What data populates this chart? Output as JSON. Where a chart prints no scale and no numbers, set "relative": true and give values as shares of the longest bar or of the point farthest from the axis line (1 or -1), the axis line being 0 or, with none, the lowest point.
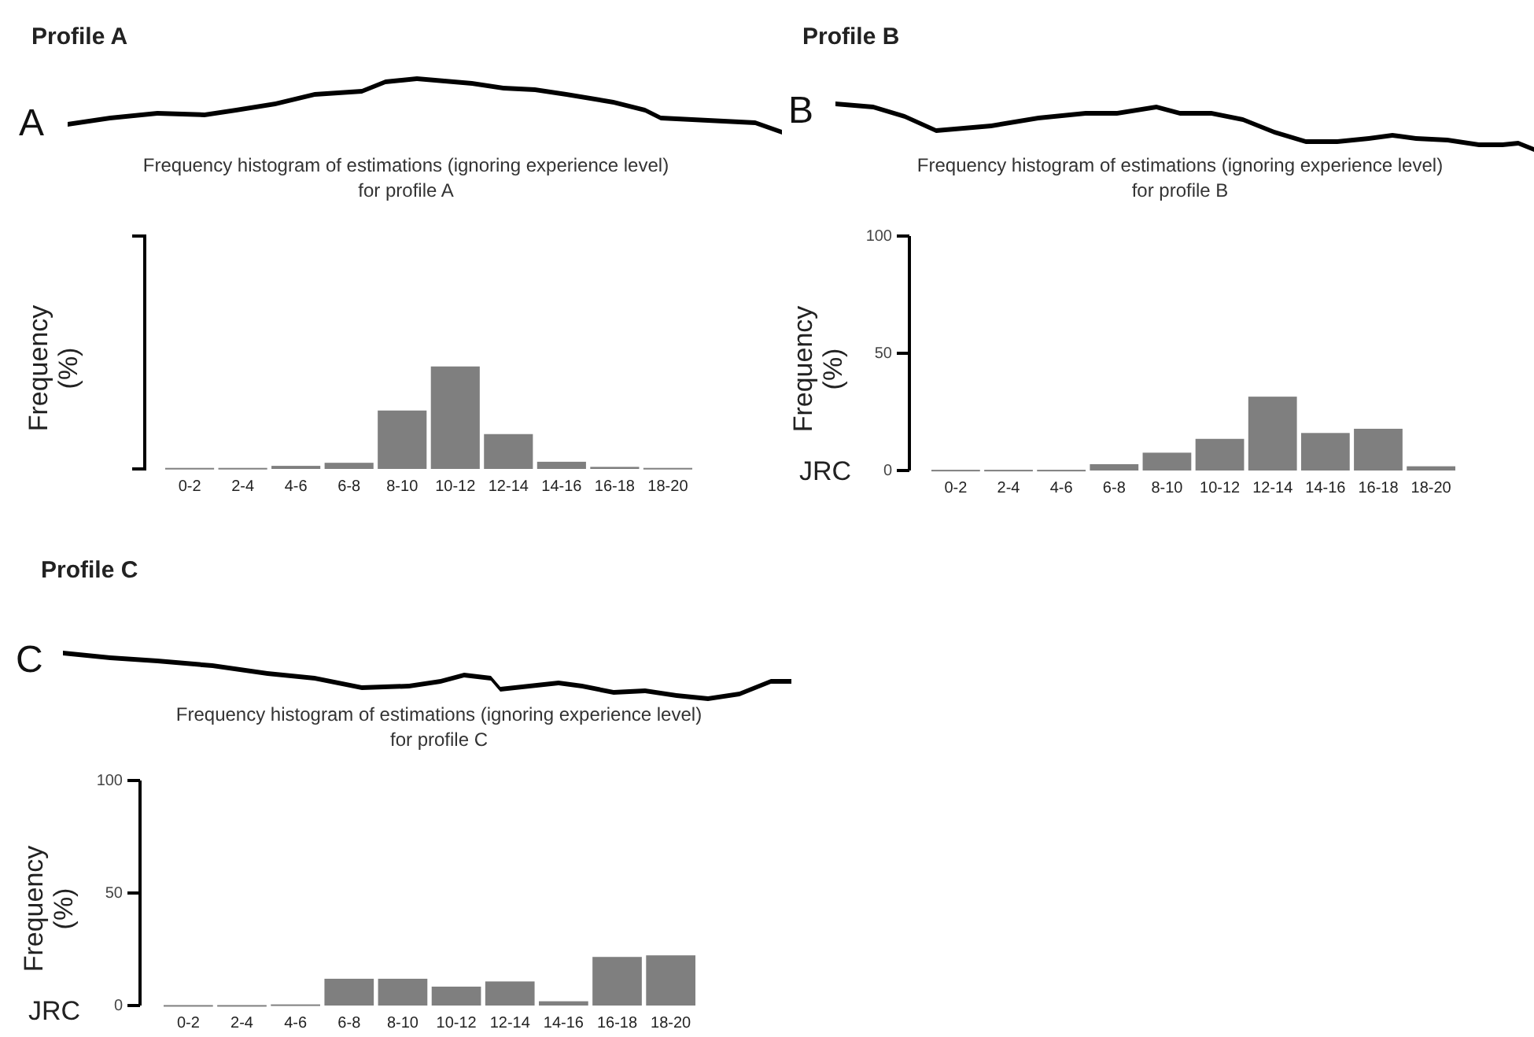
{
  "chart_data": [
    {
      "type": "bar",
      "title": "Profile A",
      "subtitle": "Frequency histogram of estimations (ignoring experience level)\nfor profile A",
      "ylabel": "Frequency\n(%)",
      "annotations": [
        "A"
      ],
      "relative": true,
      "color": "#7f7f7f",
      "categories": [
        "0-2",
        "2-4",
        "4-6",
        "6-8",
        "8-10",
        "10-12",
        "12-14",
        "14-16",
        "16-18",
        "18-20"
      ],
      "values": [
        0.01,
        0.01,
        0.03,
        0.06,
        0.57,
        1,
        0.34,
        0.07,
        0.02,
        0.01
      ]
    },
    {
      "type": "bar",
      "title": "Profile B",
      "subtitle": "Frequency histogram of estimations (ignoring experience level)\nfor profile B",
      "ylabel": "Frequency\n(%)",
      "annotations": [
        "B",
        "JRC"
      ],
      "color": "#7f7f7f",
      "ylim": [
        0,
        100
      ],
      "yticks": [
        0,
        50,
        100
      ],
      "categories": [
        "0-2",
        "2-4",
        "4-6",
        "6-8",
        "8-10",
        "10-12",
        "12-14",
        "14-16",
        "16-18",
        "18-20"
      ],
      "values": [
        0.3,
        0.3,
        0.3,
        2.7,
        7.6,
        13.5,
        31.5,
        16,
        17.8,
        1.8
      ]
    },
    {
      "type": "bar",
      "title": "Profile C",
      "subtitle": "Frequency histogram of estimations (ignoring experience level)\nfor profile C",
      "ylabel": "Frequency\n(%)",
      "annotations": [
        "C",
        "JRC"
      ],
      "color": "#7f7f7f",
      "ylim": [
        0,
        100
      ],
      "yticks": [
        0,
        50,
        100
      ],
      "categories": [
        "0-2",
        "2-4",
        "4-6",
        "6-8",
        "8-10",
        "10-12",
        "12-14",
        "14-16",
        "16-18",
        "18-20"
      ],
      "values": [
        0.2,
        0.2,
        0.5,
        11.9,
        11.9,
        8.4,
        10.7,
        1.9,
        21.6,
        22.3
      ]
    }
  ]
}
